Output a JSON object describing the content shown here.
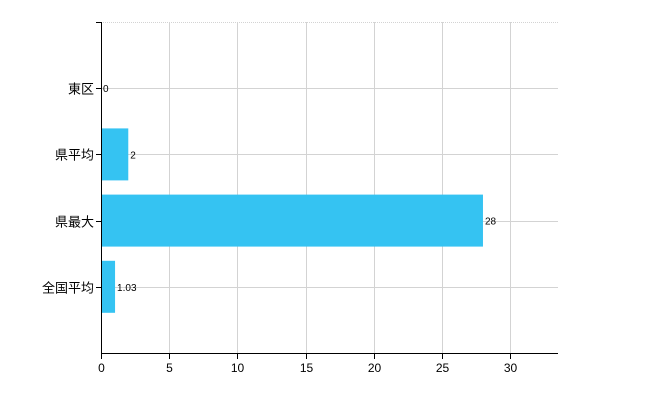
{
  "chart_data": {
    "type": "bar",
    "orientation": "horizontal",
    "title": "",
    "xlabel": "",
    "ylabel": "",
    "categories": [
      "東区",
      "県平均",
      "県最大",
      "全国平均"
    ],
    "values": [
      0,
      2,
      28,
      1.03
    ],
    "data_labels": [
      "0",
      "2",
      "28",
      "1.03"
    ],
    "xlim": [
      0,
      33.5
    ],
    "x_ticks": [
      0,
      5,
      10,
      15,
      20,
      25,
      30
    ],
    "x_tick_labels": [
      "0",
      "5",
      "10",
      "15",
      "20",
      "25",
      "30"
    ],
    "grid": true,
    "bar_color": "#35c3f2",
    "grid_color": "#d3d3d3"
  }
}
